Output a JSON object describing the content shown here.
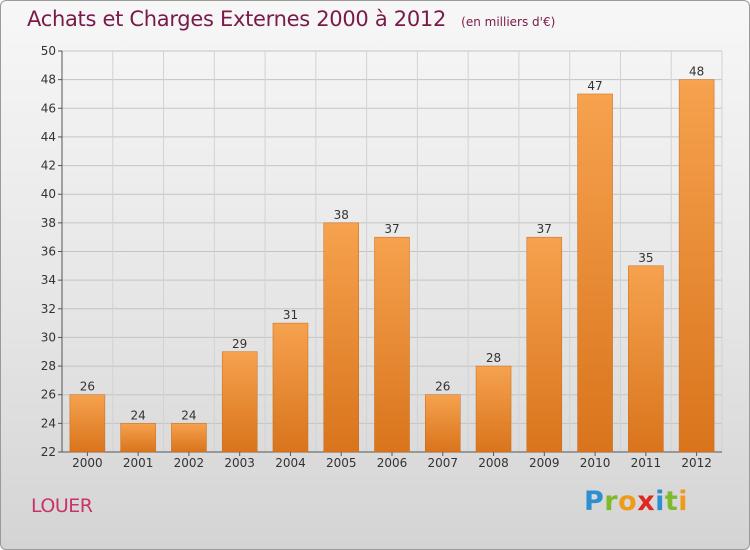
{
  "title": "Achats et Charges Externes 2000 à 2012",
  "subtitle": "(en milliers d'€)",
  "commune": "LOUER",
  "logo": {
    "text": "Proxiti",
    "colors": [
      "#2e8fd0",
      "#7dbb2c",
      "#f09a1c",
      "#e0281f",
      "#2e8fd0",
      "#7dbb2c",
      "#f09a1c"
    ]
  },
  "colors": {
    "bar_top": "#f6a24e",
    "bar_bottom": "#d9741c",
    "title": "#7a1a4a",
    "commune": "#c8336a"
  },
  "chart_data": {
    "type": "bar",
    "title": "Achats et Charges Externes 2000 à 2012",
    "subtitle": "(en milliers d'€)",
    "categories": [
      "2000",
      "2001",
      "2002",
      "2003",
      "2004",
      "2005",
      "2006",
      "2007",
      "2008",
      "2009",
      "2010",
      "2011",
      "2012"
    ],
    "values": [
      26,
      24,
      24,
      29,
      31,
      38,
      37,
      26,
      28,
      37,
      47,
      35,
      48
    ],
    "ylim": [
      22,
      50
    ],
    "yticks": [
      22,
      24,
      26,
      28,
      30,
      32,
      34,
      36,
      38,
      40,
      42,
      44,
      46,
      48,
      50
    ],
    "grid": true,
    "data_labels": true
  }
}
